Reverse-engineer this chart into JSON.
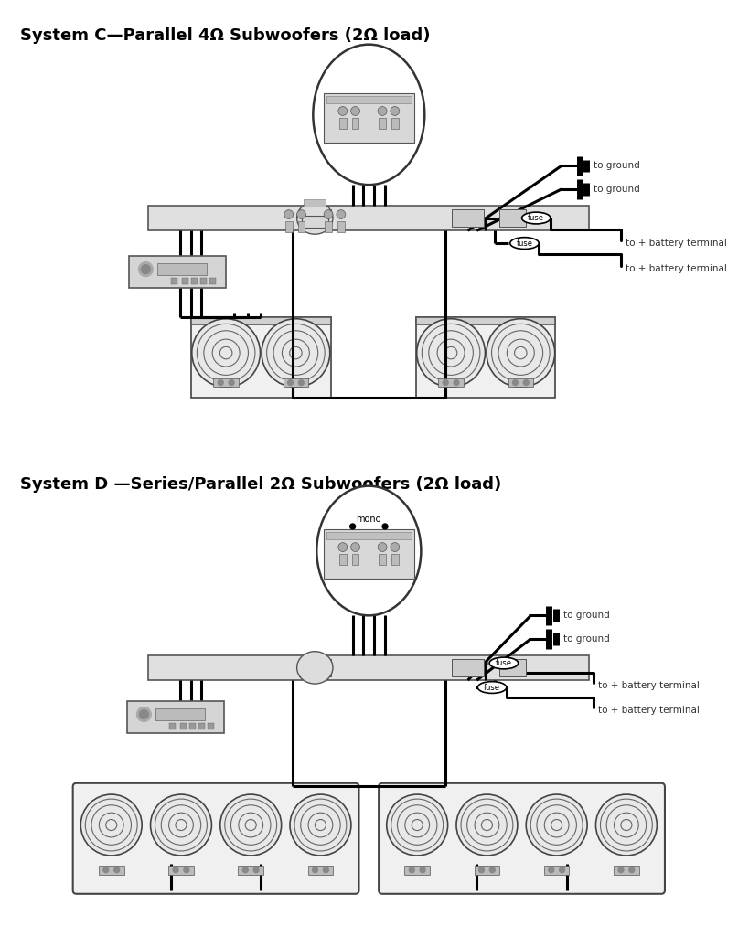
{
  "title_c": "System C—Parallel 4Ω Subwoofers (2Ω load)",
  "title_d": "System D —Series/Parallel 2Ω Subwoofers (2Ω load)",
  "bg_color": "#ffffff",
  "text_color": "#000000",
  "line_color": "#000000",
  "label_ground": "to ground",
  "label_battery": "to + battery terminal",
  "label_fuse": "fuse",
  "label_mono": "mono",
  "amp_color": "#e0e0e0",
  "amp_edge": "#555555",
  "head_color": "#d5d5d5",
  "spk_color": "#e8e8e8",
  "spk_edge": "#444444"
}
